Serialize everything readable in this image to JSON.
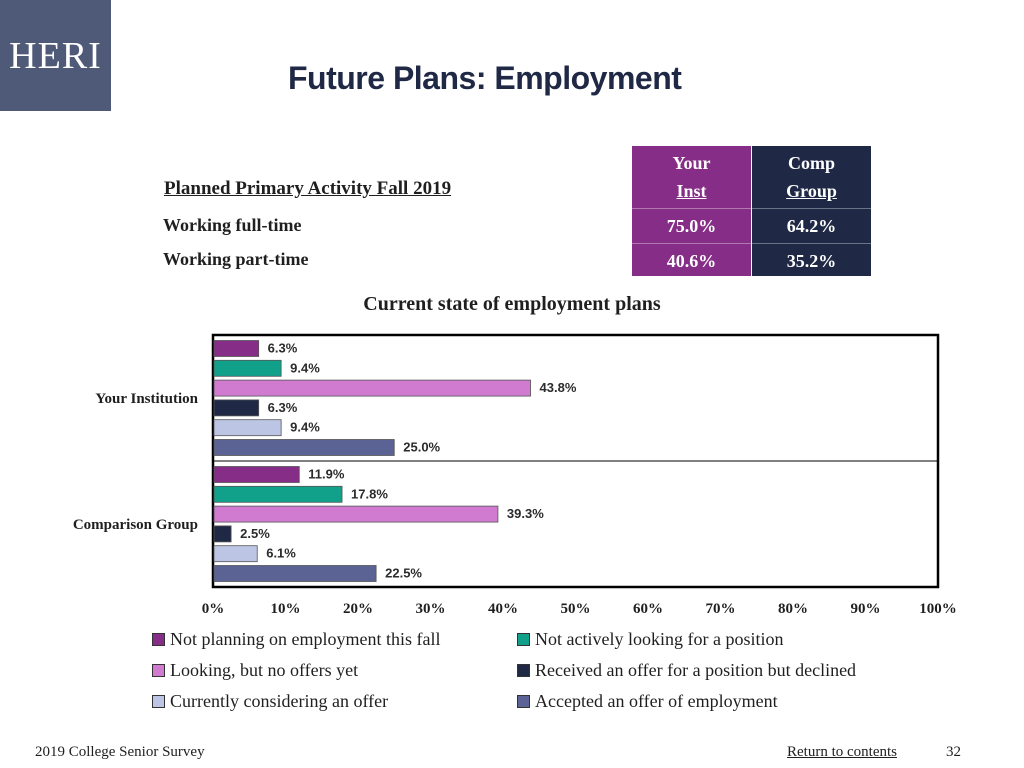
{
  "logo_text": "HERI",
  "title": "Future Plans: Employment",
  "table": {
    "caption": "Planned Primary Activity Fall 2019",
    "col_inst": [
      "Your",
      "Inst"
    ],
    "col_comp": [
      "Comp",
      "Group"
    ],
    "rows": [
      {
        "label": "Working full-time",
        "inst": "75.0%",
        "comp": "64.2%"
      },
      {
        "label": "Working part-time",
        "inst": "40.6%",
        "comp": "35.2%"
      }
    ],
    "colors": {
      "inst": "#862e87",
      "comp": "#1f2845"
    }
  },
  "chart_data": {
    "type": "bar",
    "orientation": "horizontal",
    "title": "Current state of employment plans",
    "categories": [
      "Your Institution",
      "Comparison Group"
    ],
    "series": [
      {
        "name": "Not planning on employment this fall",
        "color": "#862e87",
        "values": [
          6.3,
          11.9
        ]
      },
      {
        "name": "Not actively looking for a position",
        "color": "#11a08a",
        "values": [
          9.4,
          17.8
        ]
      },
      {
        "name": "Looking, but no offers yet",
        "color": "#d07ad0",
        "values": [
          43.8,
          39.3
        ]
      },
      {
        "name": "Received an offer for a position but declined",
        "color": "#1f2845",
        "values": [
          6.3,
          2.5
        ]
      },
      {
        "name": "Currently considering an offer",
        "color": "#bcc5e3",
        "values": [
          9.4,
          6.1
        ]
      },
      {
        "name": "Accepted an offer of employment",
        "color": "#5a6394",
        "values": [
          25.0,
          22.5
        ]
      }
    ],
    "data_labels": [
      [
        "6.3%",
        "9.4%",
        "43.8%",
        "6.3%",
        "9.4%",
        "25.0%"
      ],
      [
        "11.9%",
        "17.8%",
        "39.3%",
        "2.5%",
        "6.1%",
        "22.5%"
      ]
    ],
    "xlim": [
      0,
      100
    ],
    "x_ticks": [
      "0%",
      "10%",
      "20%",
      "30%",
      "40%",
      "50%",
      "60%",
      "70%",
      "80%",
      "90%",
      "100%"
    ],
    "legend_position": "bottom",
    "grid": false
  },
  "footer": {
    "survey": "2019 College Senior Survey",
    "return_link": "Return to contents",
    "page": "32"
  }
}
